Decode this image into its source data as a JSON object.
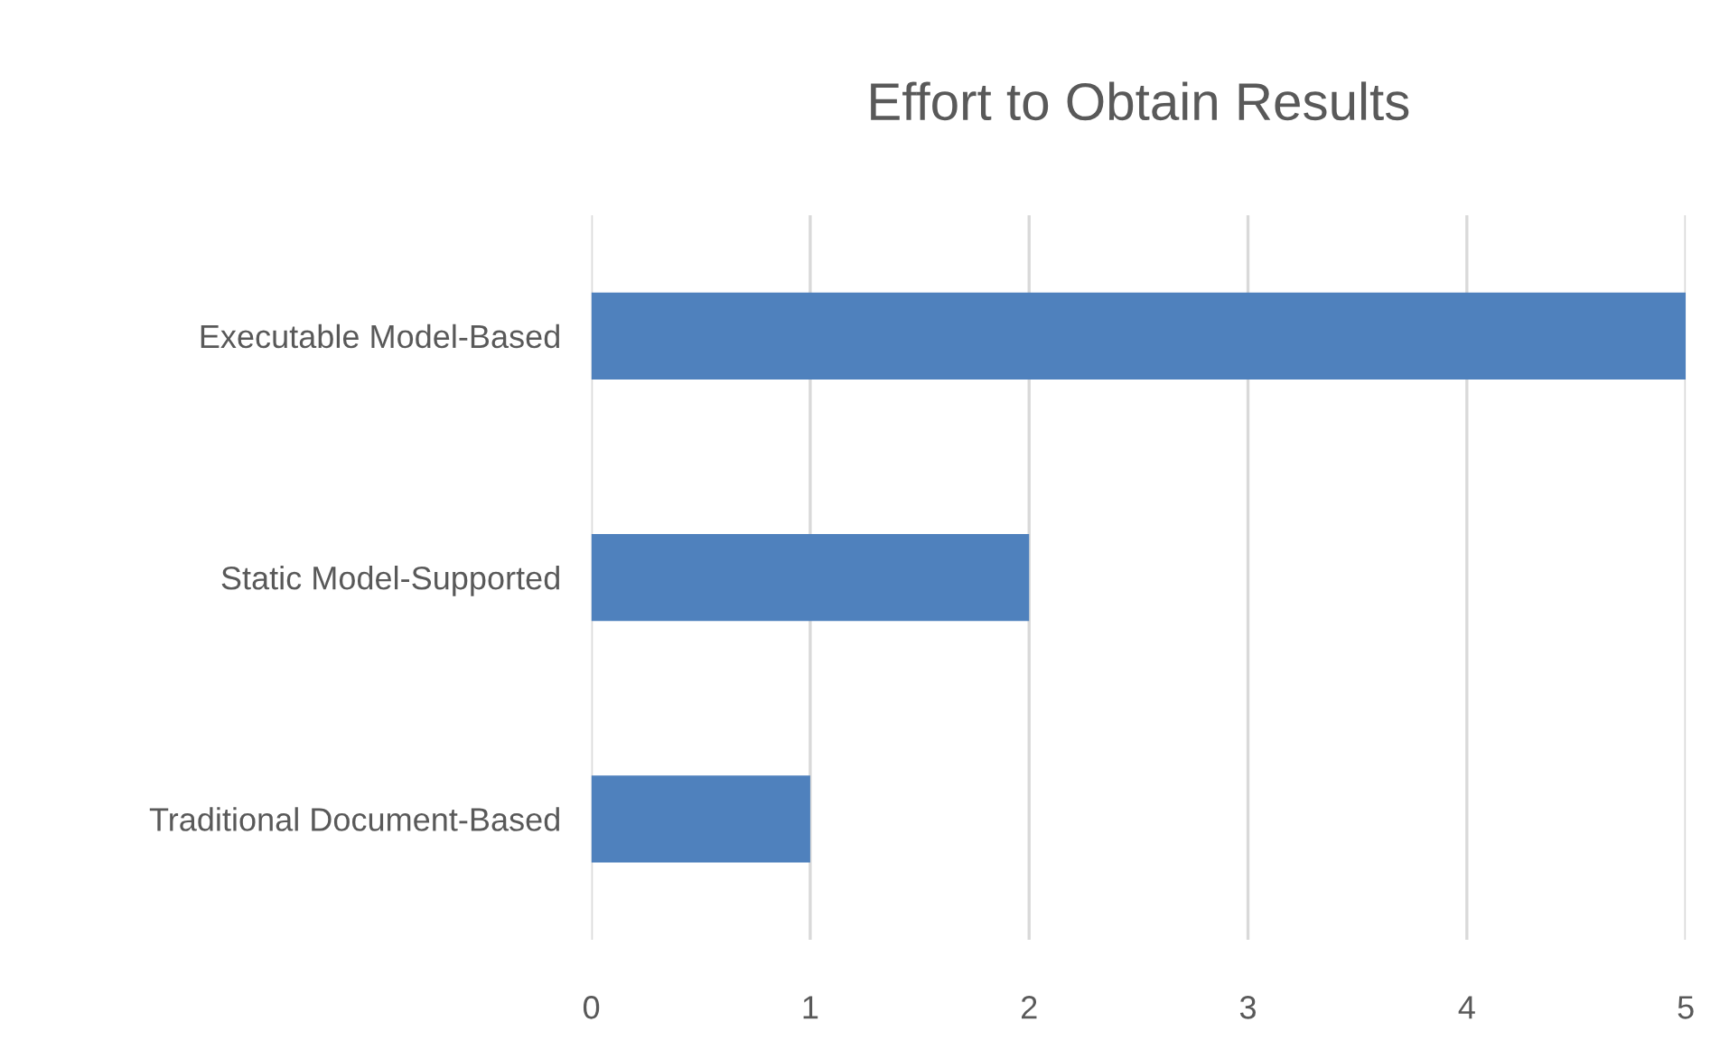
{
  "chart_data": {
    "type": "bar",
    "orientation": "horizontal",
    "title": "Effort to Obtain Results",
    "categories": [
      "Executable Model-Based",
      "Static Model-Supported",
      "Traditional Document-Based"
    ],
    "values": [
      5,
      2,
      1
    ],
    "color": "#4f81bd",
    "xlim": [
      0,
      5
    ],
    "xticks": [
      0,
      1,
      2,
      3,
      4,
      5
    ],
    "grid": "x",
    "legend": false
  }
}
